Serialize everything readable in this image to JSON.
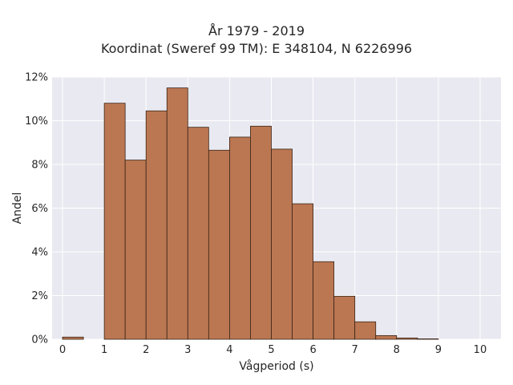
{
  "chart_data": {
    "type": "bar",
    "title": "År 1979 - 2019",
    "subtitle": "Koordinat (Sweref 99 TM): E 348104, N 6226996",
    "xlabel": "Vågperiod (s)",
    "ylabel": "Andel",
    "xlim": [
      -0.25,
      10.5
    ],
    "ylim": [
      0,
      0.12
    ],
    "x_ticks": [
      0,
      1,
      2,
      3,
      4,
      5,
      6,
      7,
      8,
      9,
      10
    ],
    "y_ticks": [
      0,
      0.02,
      0.04,
      0.06,
      0.08,
      0.1,
      0.12
    ],
    "y_tick_labels": [
      "0%",
      "2%",
      "4%",
      "6%",
      "8%",
      "10%",
      "12%"
    ],
    "bin_width": 0.5,
    "bins": [
      {
        "start": 0.0,
        "value": 0.001
      },
      {
        "start": 0.5,
        "value": 0.0
      },
      {
        "start": 1.0,
        "value": 0.108
      },
      {
        "start": 1.5,
        "value": 0.082
      },
      {
        "start": 2.0,
        "value": 0.1045
      },
      {
        "start": 2.5,
        "value": 0.115
      },
      {
        "start": 3.0,
        "value": 0.097
      },
      {
        "start": 3.5,
        "value": 0.0865
      },
      {
        "start": 4.0,
        "value": 0.0925
      },
      {
        "start": 4.5,
        "value": 0.0975
      },
      {
        "start": 5.0,
        "value": 0.087
      },
      {
        "start": 5.5,
        "value": 0.062
      },
      {
        "start": 6.0,
        "value": 0.0355
      },
      {
        "start": 6.5,
        "value": 0.0197
      },
      {
        "start": 7.0,
        "value": 0.008
      },
      {
        "start": 7.5,
        "value": 0.0017
      },
      {
        "start": 8.0,
        "value": 0.0006
      },
      {
        "start": 8.5,
        "value": 0.0002
      }
    ],
    "grid": true,
    "colors": {
      "bar_fill": "#bb7752",
      "bar_stroke": "#3a2416",
      "plot_background": "#e9e9f1",
      "grid": "#ffffff"
    }
  }
}
